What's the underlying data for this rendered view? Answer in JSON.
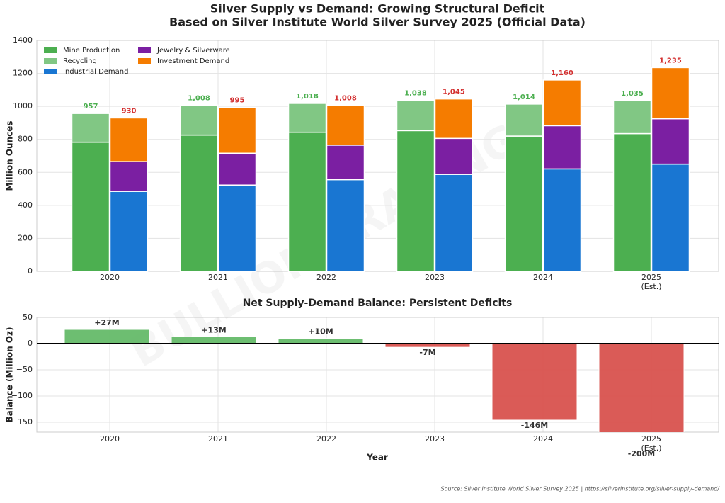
{
  "chart_data": [
    {
      "type": "stacked_bar",
      "title": "Silver Supply vs Demand: Growing Structural Deficit",
      "subtitle": "Based on Silver Institute World Silver Survey 2025 (Official Data)",
      "ylabel": "Million Ounces",
      "watermark": "BULLION TRADING",
      "categories": [
        "2020",
        "2021",
        "2022",
        "2023",
        "2024",
        "2025\n(Est.)"
      ],
      "series": [
        {
          "name": "Mine Production",
          "color": "#4caf50",
          "stack": "supply",
          "values": [
            783,
            826,
            843,
            853,
            820,
            835
          ]
        },
        {
          "name": "Recycling",
          "color": "#81c784",
          "stack": "supply",
          "values": [
            174,
            182,
            175,
            185,
            194,
            200
          ]
        },
        {
          "name": "Industrial Demand",
          "color": "#1976d2",
          "stack": "demand",
          "values": [
            485,
            523,
            556,
            588,
            621,
            650
          ]
        },
        {
          "name": "Jewelry & Silverware",
          "color": "#7b1fa2",
          "stack": "demand",
          "values": [
            180,
            193,
            209,
            218,
            262,
            275
          ]
        },
        {
          "name": "Investment Demand",
          "color": "#f57c00",
          "stack": "demand",
          "values": [
            265,
            279,
            243,
            239,
            277,
            310
          ]
        }
      ],
      "totals": [
        {
          "stack": "supply",
          "color": "#4caf50",
          "values": [
            957,
            1008,
            1018,
            1038,
            1014,
            1035
          ],
          "value_labels": [
            "957",
            "1,008",
            "1,018",
            "1,038",
            "1,014",
            "1,035"
          ]
        },
        {
          "stack": "demand",
          "color": "#d32f2f",
          "values": [
            930,
            995,
            1008,
            1045,
            1160,
            1235
          ],
          "value_labels": [
            "930",
            "995",
            "1,008",
            "1,045",
            "1,160",
            "1,235"
          ]
        }
      ],
      "ylim": [
        0,
        1400
      ],
      "yticks": [
        0,
        200,
        400,
        600,
        800,
        1000,
        1200,
        1400
      ],
      "grid": true,
      "legend": "upper left"
    },
    {
      "type": "bar",
      "title": "Net Supply-Demand Balance: Persistent Deficits",
      "xlabel": "Year",
      "ylabel": "Balance (Million Oz)",
      "categories": [
        "2020",
        "2021",
        "2022",
        "2023",
        "2024",
        "2025\n(Est.)"
      ],
      "values": [
        27,
        13,
        10,
        -7,
        -146,
        -200
      ],
      "value_labels": [
        "+27M",
        "+13M",
        "+10M",
        "-7M",
        "-146M",
        "-200M"
      ],
      "colors": [
        "#66bb6a",
        "#66bb6a",
        "#66bb6a",
        "#d9534f",
        "#d9534f",
        "#d9534f"
      ],
      "ylim": [
        -169,
        50
      ],
      "yticks": [
        {
          "value": -150,
          "label": "−150"
        },
        {
          "value": -100,
          "label": "−100"
        },
        {
          "value": -50,
          "label": "−50"
        },
        0,
        50
      ],
      "grid": true,
      "source": "Source: Silver Institute World Silver Survey 2025 | https://silverinstitute.org/silver-supply-demand/"
    }
  ]
}
